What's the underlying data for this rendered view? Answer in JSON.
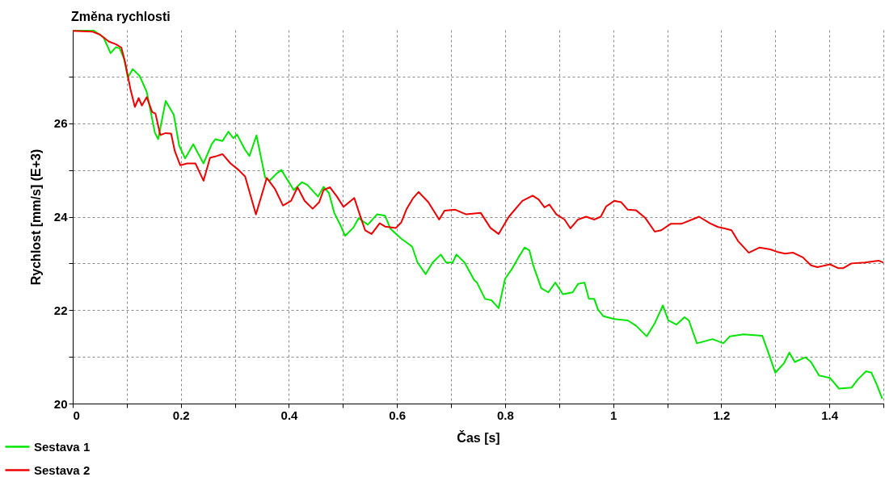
{
  "chart_data": {
    "type": "line",
    "title": "Změna rychlosti",
    "xlabel": "Čas [s]",
    "ylabel": "Rychlost [mm/s] (E+3)",
    "xlim": [
      0,
      1.5
    ],
    "ylim": [
      20,
      28
    ],
    "xticks": [
      0,
      {
        "value": 0.1,
        "label": null
      },
      0.2,
      {
        "value": 0.3,
        "label": null
      },
      0.4,
      {
        "value": 0.5,
        "label": null
      },
      0.6,
      {
        "value": 0.7,
        "label": null
      },
      0.8,
      {
        "value": 0.9,
        "label": null
      },
      1,
      {
        "value": 1.1,
        "label": null
      },
      1.2,
      {
        "value": 1.3,
        "label": null
      },
      1.4,
      {
        "value": 1.5,
        "label": null
      }
    ],
    "yticks": [
      20,
      {
        "value": 21,
        "label": null
      },
      22,
      {
        "value": 23,
        "label": null
      },
      24,
      {
        "value": 25,
        "label": null
      },
      26,
      {
        "value": 27,
        "label": null
      }
    ],
    "grid": true,
    "legend": "bottom left",
    "line_style": "solid",
    "marker": "none",
    "series": [
      {
        "name": "Sestava 1",
        "color": "#00e600",
        "x": [
          0,
          0.037,
          0.057,
          0.07,
          0.08,
          0.087,
          0.095,
          0.102,
          0.111,
          0.124,
          0.137,
          0.152,
          0.158,
          0.172,
          0.187,
          0.197,
          0.208,
          0.223,
          0.242,
          0.257,
          0.264,
          0.277,
          0.288,
          0.297,
          0.304,
          0.319,
          0.327,
          0.34,
          0.356,
          0.364,
          0.376,
          0.386,
          0.409,
          0.424,
          0.434,
          0.454,
          0.464,
          0.474,
          0.484,
          0.494,
          0.504,
          0.519,
          0.529,
          0.546,
          0.563,
          0.578,
          0.588,
          0.608,
          0.628,
          0.638,
          0.653,
          0.666,
          0.681,
          0.691,
          0.703,
          0.71,
          0.725,
          0.743,
          0.748,
          0.763,
          0.775,
          0.788,
          0.8,
          0.812,
          0.825,
          0.836,
          0.845,
          0.852,
          0.867,
          0.88,
          0.893,
          0.907,
          0.925,
          0.935,
          0.947,
          0.955,
          0.965,
          0.972,
          0.982,
          1.002,
          1.027,
          1.042,
          1.062,
          1.077,
          1.092,
          1.102,
          1.117,
          1.132,
          1.14,
          1.155,
          1.184,
          1.204,
          1.216,
          1.241,
          1.276,
          1.289,
          1.3,
          1.316,
          1.326,
          1.336,
          1.356,
          1.366,
          1.381,
          1.401,
          1.418,
          1.441,
          1.453,
          1.468,
          1.478,
          1.488,
          1.498
        ],
        "values": [
          27.98,
          28.0,
          27.84,
          27.5,
          27.63,
          27.6,
          27.38,
          26.98,
          27.16,
          27.01,
          26.67,
          25.8,
          25.66,
          26.48,
          26.18,
          25.52,
          25.25,
          25.55,
          25.14,
          25.55,
          25.66,
          25.62,
          25.82,
          25.68,
          25.76,
          25.43,
          25.3,
          25.74,
          24.84,
          24.77,
          24.91,
          25.0,
          24.57,
          24.74,
          24.68,
          24.43,
          24.64,
          24.51,
          24.08,
          23.85,
          23.59,
          23.76,
          23.97,
          23.83,
          24.05,
          24.02,
          23.74,
          23.53,
          23.36,
          23.02,
          22.77,
          23.02,
          23.19,
          23.02,
          23.02,
          23.19,
          23.02,
          22.64,
          22.59,
          22.24,
          22.21,
          22.04,
          22.67,
          22.87,
          23.13,
          23.34,
          23.28,
          22.96,
          22.47,
          22.38,
          22.59,
          22.34,
          22.38,
          22.56,
          22.59,
          22.24,
          22.24,
          22.01,
          21.87,
          21.81,
          21.78,
          21.67,
          21.44,
          21.72,
          22.1,
          21.78,
          21.69,
          21.85,
          21.78,
          21.29,
          21.38,
          21.29,
          21.44,
          21.48,
          21.45,
          21.03,
          20.66,
          20.86,
          21.09,
          20.89,
          20.99,
          20.89,
          20.6,
          20.55,
          20.32,
          20.34,
          20.52,
          20.69,
          20.66,
          20.4,
          20.1
        ]
      },
      {
        "name": "Sestava 2",
        "color": "#ee0000",
        "x": [
          0,
          0.037,
          0.05,
          0.067,
          0.08,
          0.09,
          0.097,
          0.107,
          0.115,
          0.122,
          0.128,
          0.137,
          0.147,
          0.153,
          0.162,
          0.172,
          0.182,
          0.189,
          0.199,
          0.212,
          0.227,
          0.242,
          0.254,
          0.264,
          0.277,
          0.292,
          0.307,
          0.319,
          0.339,
          0.359,
          0.374,
          0.389,
          0.404,
          0.416,
          0.429,
          0.444,
          0.456,
          0.464,
          0.476,
          0.489,
          0.501,
          0.521,
          0.531,
          0.541,
          0.553,
          0.568,
          0.578,
          0.598,
          0.608,
          0.618,
          0.63,
          0.64,
          0.658,
          0.678,
          0.688,
          0.708,
          0.728,
          0.755,
          0.773,
          0.788,
          0.807,
          0.832,
          0.851,
          0.862,
          0.873,
          0.882,
          0.895,
          0.91,
          0.921,
          0.935,
          0.95,
          0.965,
          0.977,
          0.987,
          1.002,
          1.015,
          1.027,
          1.042,
          1.059,
          1.077,
          1.089,
          1.107,
          1.127,
          1.159,
          1.179,
          1.194,
          1.206,
          1.219,
          1.231,
          1.251,
          1.271,
          1.291,
          1.303,
          1.318,
          1.333,
          1.351,
          1.366,
          1.378,
          1.401,
          1.416,
          1.426,
          1.441,
          1.466,
          1.491,
          1.5
        ],
        "values": [
          27.98,
          27.96,
          27.9,
          27.75,
          27.69,
          27.62,
          27.3,
          26.72,
          26.35,
          26.54,
          26.38,
          26.56,
          26.24,
          26.21,
          25.75,
          25.79,
          25.78,
          25.4,
          25.1,
          25.14,
          25.14,
          24.77,
          25.26,
          25.29,
          25.34,
          25.14,
          25.0,
          24.86,
          24.05,
          24.83,
          24.6,
          24.24,
          24.34,
          24.63,
          24.34,
          24.17,
          24.31,
          24.57,
          24.63,
          24.43,
          24.21,
          24.4,
          24.05,
          23.71,
          23.63,
          23.86,
          23.79,
          23.76,
          23.88,
          24.17,
          24.4,
          24.53,
          24.31,
          23.94,
          24.13,
          24.15,
          24.05,
          24.08,
          23.76,
          23.63,
          24.0,
          24.34,
          24.45,
          24.37,
          24.2,
          24.26,
          24.05,
          23.94,
          23.75,
          23.94,
          24.0,
          23.94,
          24.0,
          24.22,
          24.34,
          24.31,
          24.15,
          24.14,
          23.98,
          23.68,
          23.71,
          23.85,
          23.85,
          24.0,
          23.86,
          23.78,
          23.75,
          23.71,
          23.48,
          23.23,
          23.34,
          23.3,
          23.25,
          23.21,
          23.23,
          23.13,
          22.96,
          22.92,
          22.98,
          22.9,
          22.9,
          23.0,
          23.02,
          23.06,
          23.02
        ]
      }
    ]
  }
}
